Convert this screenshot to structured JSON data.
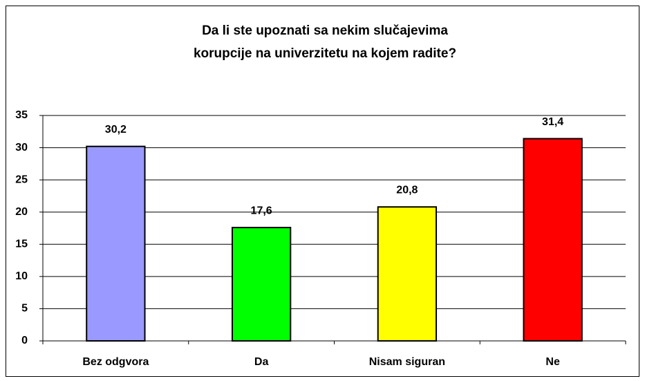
{
  "chart_data": {
    "type": "bar",
    "title": "Da li ste upoznati sa nekim slučajevima korupcije na univerzitetu na kojem radite?",
    "categories": [
      "Bez odgvora",
      "Da",
      "Nisam siguran",
      "Ne"
    ],
    "values": [
      30.2,
      17.6,
      20.8,
      31.4
    ],
    "value_labels": [
      "30,2",
      "17,6",
      "20,8",
      "31,4"
    ],
    "colors": [
      "#9999ff",
      "#00ff00",
      "#ffff00",
      "#ff0000"
    ],
    "ylim": [
      0,
      35
    ],
    "yticks": [
      0,
      5,
      10,
      15,
      20,
      25,
      30,
      35
    ],
    "grid": true
  }
}
